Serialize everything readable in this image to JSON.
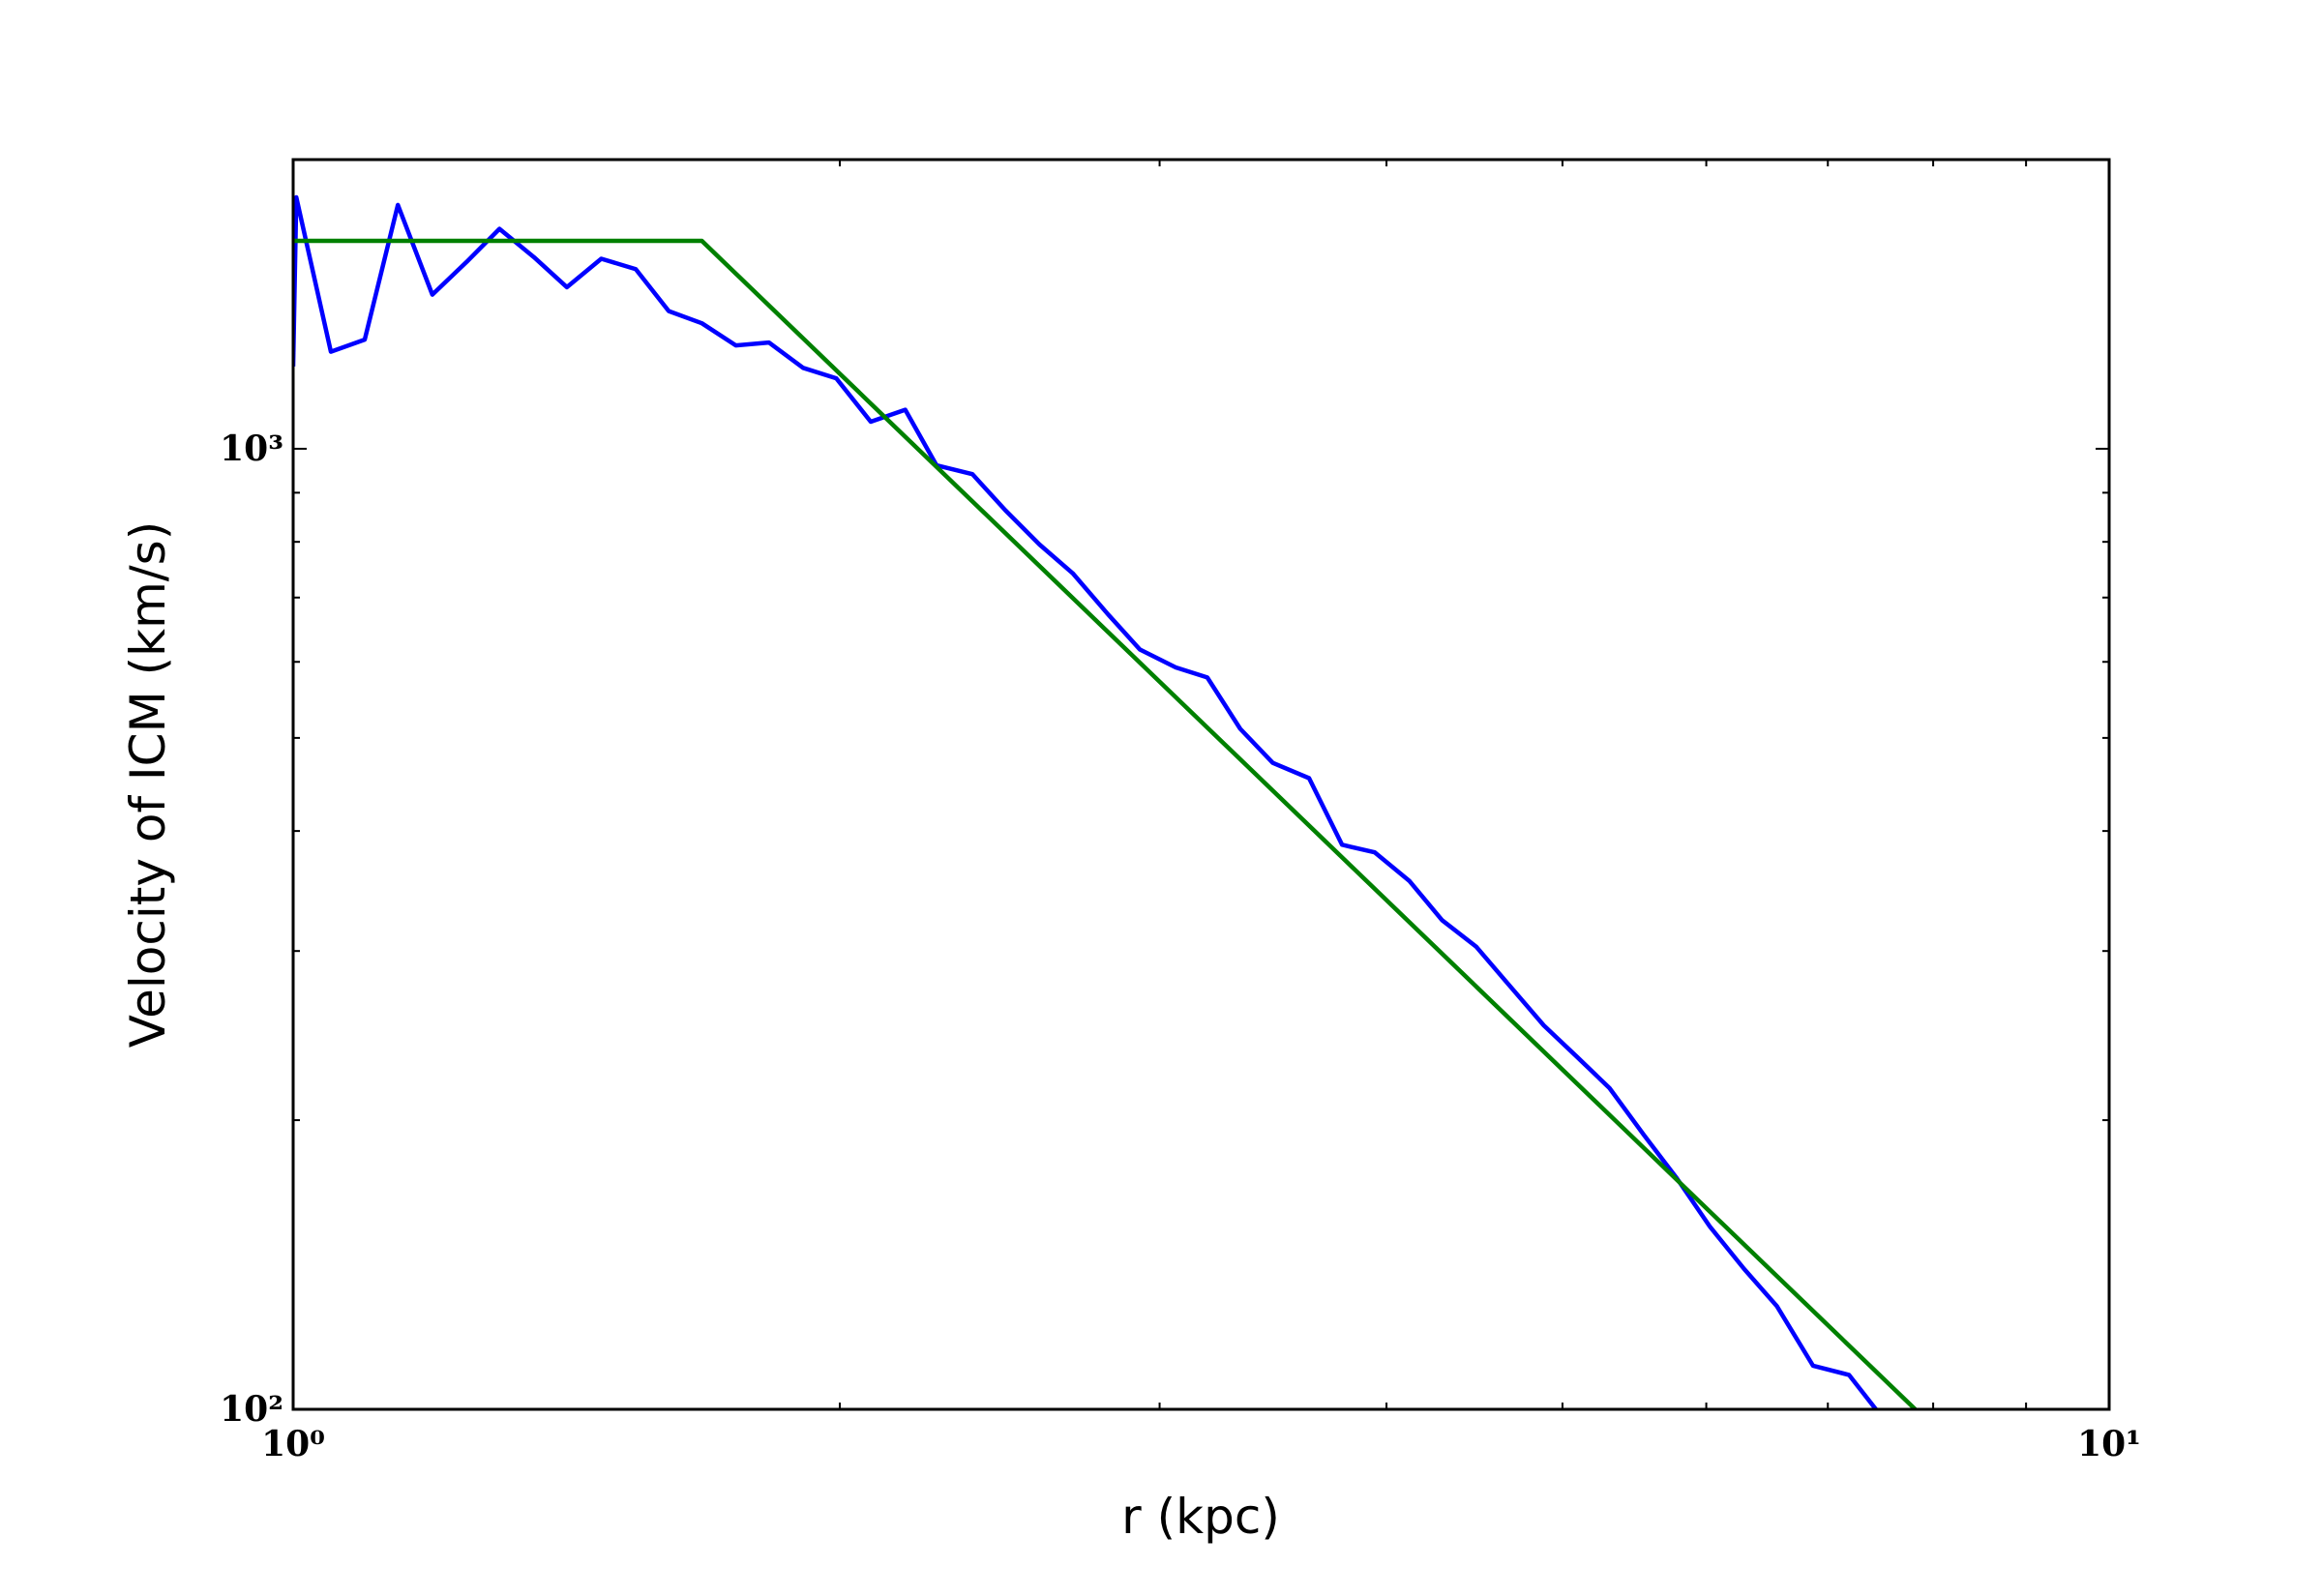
{
  "chart_data": {
    "type": "line",
    "xlabel": "r (kpc)",
    "ylabel": "Velocity of ICM (km/s)",
    "xscale": "log",
    "yscale": "log",
    "xlim": [
      1,
      10
    ],
    "ylim": [
      100,
      2000
    ],
    "xticks": [
      {
        "value": 1,
        "label": "10⁰"
      },
      {
        "value": 10,
        "label": "10¹"
      }
    ],
    "yticks": [
      {
        "value": 100,
        "label": "10²"
      },
      {
        "value": 1000,
        "label": "10³"
      }
    ],
    "xminorticks": [
      2,
      3,
      4,
      5,
      6,
      7,
      8,
      9
    ],
    "yminorticks": [
      200,
      300,
      400,
      500,
      600,
      700,
      800,
      900
    ],
    "series": [
      {
        "color": "#0000ff",
        "x": [
          1.0,
          1.004,
          1.049,
          1.095,
          1.142,
          1.193,
          1.246,
          1.299,
          1.357,
          1.415,
          1.478,
          1.544,
          1.61,
          1.679,
          1.753,
          1.828,
          1.909,
          1.991,
          2.08,
          2.173,
          2.261,
          2.366,
          2.467,
          2.576,
          2.687,
          2.807,
          2.926,
          3.062,
          3.187,
          3.323,
          3.463,
          3.626,
          3.781,
          3.941,
          4.117,
          4.292,
          4.483,
          4.684,
          4.883,
          5.09,
          5.307,
          5.544,
          5.78,
          6.027,
          6.295,
          6.563,
          6.87,
          7.19,
          7.44
        ],
        "values": [
          1218,
          1827,
          1262,
          1299,
          1794,
          1447,
          1565,
          1694,
          1583,
          1473,
          1577,
          1538,
          1391,
          1351,
          1281,
          1290,
          1214,
          1184,
          1067,
          1098,
          961,
          941,
          863,
          795,
          742,
          674,
          618,
          592,
          578,
          511,
          471,
          454,
          387,
          380,
          355,
          323,
          303,
          275,
          251,
          233,
          216,
          193,
          174,
          155,
          140,
          128,
          111,
          108.6,
          100
        ]
      },
      {
        "color": "#008000",
        "x": [
          1.0,
          1.679,
          7.82
        ],
        "values": [
          1646,
          1646,
          100
        ]
      }
    ]
  }
}
